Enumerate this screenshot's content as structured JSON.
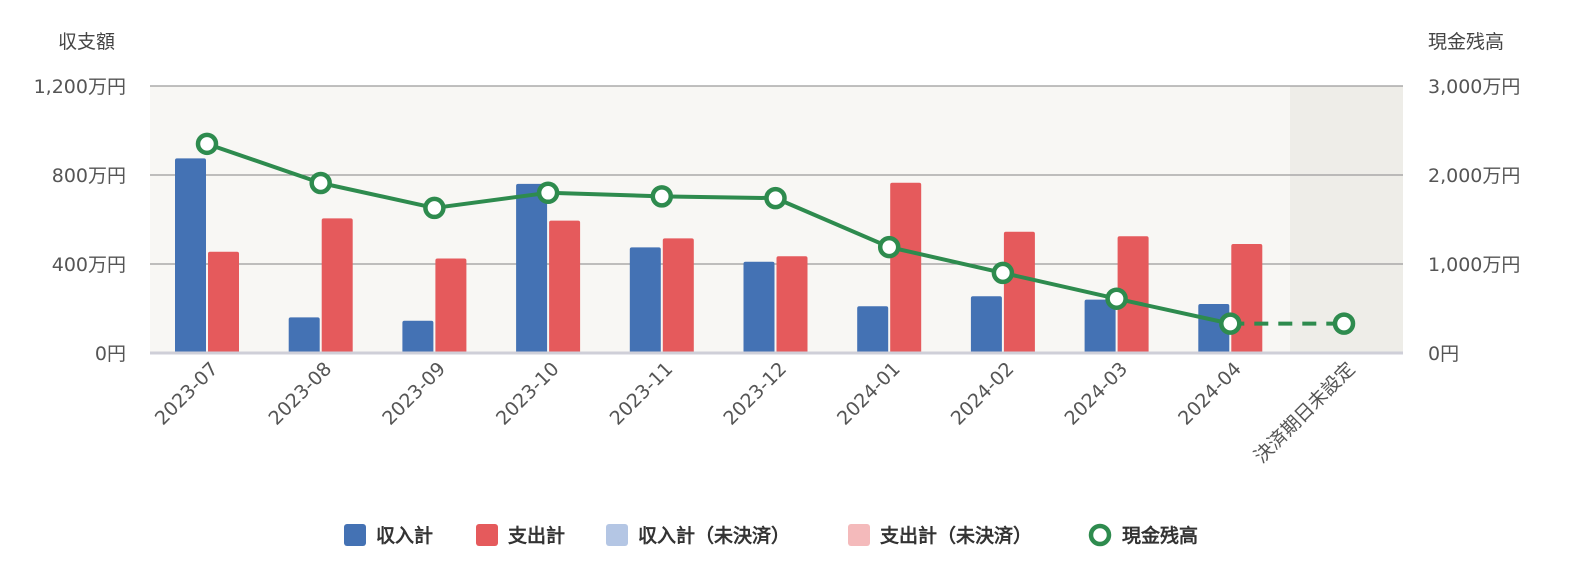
{
  "chart_data": {
    "type": "bar",
    "left_axis_title": "収支額",
    "right_axis_title": "現金残高",
    "categories": [
      "2023-07",
      "2023-08",
      "2023-09",
      "2023-10",
      "2023-11",
      "2023-12",
      "2024-01",
      "2024-02",
      "2024-03",
      "2024-04",
      "決済期日未設定"
    ],
    "left_ylim": [
      0,
      1200
    ],
    "right_ylim": [
      0,
      3000
    ],
    "left_ticks": [
      "0円",
      "400万円",
      "800万円",
      "1,200万円"
    ],
    "right_ticks": [
      "0円",
      "1,000万円",
      "2,000万円",
      "3,000万円"
    ],
    "grid": true,
    "legend_position": "bottom",
    "series": [
      {
        "name": "収入計",
        "kind": "bar",
        "axis": "left",
        "color": "#4472b4",
        "values": [
          875,
          160,
          145,
          760,
          475,
          410,
          210,
          255,
          240,
          220,
          null
        ]
      },
      {
        "name": "支出計",
        "kind": "bar",
        "axis": "left",
        "color": "#e55a5c",
        "values": [
          455,
          605,
          425,
          595,
          515,
          435,
          765,
          545,
          525,
          490,
          null
        ]
      },
      {
        "name": "収入計（未決済）",
        "kind": "bar",
        "axis": "left",
        "color": "#b4c6e4",
        "values": [
          null,
          null,
          null,
          null,
          null,
          null,
          null,
          null,
          null,
          null,
          null
        ]
      },
      {
        "name": "支出計（未決済）",
        "kind": "bar",
        "axis": "left",
        "color": "#f4babb",
        "values": [
          null,
          null,
          null,
          null,
          null,
          null,
          null,
          null,
          null,
          null,
          null
        ]
      },
      {
        "name": "現金残高",
        "kind": "line",
        "axis": "right",
        "color": "#2e8b4e",
        "values": [
          2350,
          1910,
          1630,
          1800,
          1760,
          1740,
          1190,
          900,
          610,
          330,
          330
        ],
        "dashed_last_segment": true
      }
    ]
  }
}
